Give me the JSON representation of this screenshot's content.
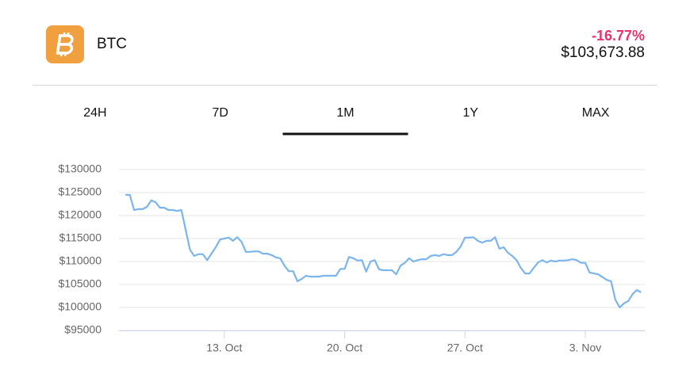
{
  "header": {
    "symbol": "BTC",
    "change": "-16.77%",
    "price": "$103,673.88"
  },
  "tabs": [
    "24H",
    "7D",
    "1M",
    "1Y",
    "MAX"
  ],
  "active_tab": 2,
  "chart_data": {
    "type": "line",
    "color": "#7cb5ec",
    "grid": true,
    "xlim": [
      6.87,
      37.46
    ],
    "xticks": [
      {
        "value": 13,
        "label": "13. Oct"
      },
      {
        "value": 20,
        "label": "20. Oct"
      },
      {
        "value": 27,
        "label": "27. Oct"
      },
      {
        "value": 34,
        "label": "3. Nov"
      }
    ],
    "ylim": [
      95000,
      130000
    ],
    "yticks": [
      {
        "value": 95000,
        "label": "$95000"
      },
      {
        "value": 100000,
        "label": "$100000"
      },
      {
        "value": 105000,
        "label": "$105000"
      },
      {
        "value": 110000,
        "label": "$110000"
      },
      {
        "value": 115000,
        "label": "$115000"
      },
      {
        "value": 120000,
        "label": "$120000"
      },
      {
        "value": 125000,
        "label": "$125000"
      },
      {
        "value": 130000,
        "label": "$130000"
      }
    ],
    "x": [
      7.25,
      7.5,
      7.75,
      8,
      8.25,
      8.5,
      8.75,
      9,
      9.25,
      9.5,
      9.75,
      10,
      10.25,
      10.5,
      10.75,
      11,
      11.25,
      11.5,
      11.75,
      12,
      12.25,
      12.5,
      12.75,
      13,
      13.25,
      13.5,
      13.75,
      14,
      14.25,
      14.5,
      14.75,
      15,
      15.25,
      15.5,
      15.75,
      16,
      16.25,
      16.5,
      16.75,
      17,
      17.25,
      17.5,
      17.75,
      18,
      18.25,
      18.5,
      18.75,
      19,
      19.25,
      19.5,
      19.75,
      20,
      20.25,
      20.5,
      20.75,
      21,
      21.25,
      21.5,
      21.75,
      22,
      22.25,
      22.5,
      22.75,
      23,
      23.25,
      23.5,
      23.75,
      24,
      24.25,
      24.5,
      24.75,
      25,
      25.25,
      25.5,
      25.75,
      26,
      26.25,
      26.5,
      26.75,
      27,
      27.25,
      27.5,
      27.75,
      28,
      28.25,
      28.5,
      28.75,
      29,
      29.25,
      29.5,
      29.75,
      30,
      30.25,
      30.5,
      30.75,
      31,
      31.25,
      31.5,
      31.75,
      32,
      32.25,
      32.5,
      32.75,
      33,
      33.25,
      33.5,
      33.75,
      34,
      34.25,
      34.5,
      34.75,
      35,
      35.25,
      35.5,
      35.75,
      36,
      36.25,
      36.5,
      36.75,
      37,
      37.25
    ],
    "values": [
      124500,
      124500,
      121200,
      121400,
      121400,
      121900,
      123300,
      122900,
      121700,
      121700,
      121200,
      121200,
      121000,
      121200,
      116900,
      112600,
      111200,
      111600,
      111600,
      110300,
      111700,
      113100,
      114800,
      115000,
      115200,
      114500,
      115300,
      114300,
      112100,
      112100,
      112200,
      112200,
      111700,
      111700,
      111400,
      110900,
      110700,
      109100,
      107900,
      107900,
      105700,
      106200,
      106900,
      106700,
      106700,
      106700,
      106900,
      106900,
      106900,
      106900,
      108400,
      108400,
      111000,
      110700,
      110200,
      110300,
      107800,
      110000,
      110300,
      108300,
      108100,
      108100,
      108100,
      107200,
      109100,
      109700,
      110700,
      110000,
      110300,
      110500,
      110500,
      111200,
      111400,
      111200,
      111600,
      111400,
      111400,
      112100,
      113300,
      115200,
      115200,
      115300,
      114500,
      114100,
      114500,
      114500,
      115300,
      112800,
      113100,
      111900,
      111200,
      110300,
      108600,
      107400,
      107400,
      108600,
      109800,
      110300,
      109800,
      110200,
      110000,
      110200,
      110200,
      110300,
      110500,
      110300,
      109700,
      109700,
      107600,
      107400,
      107200,
      106600,
      106000,
      105700,
      101700,
      100000,
      100900,
      101400,
      102900,
      103800,
      103300
    ]
  }
}
